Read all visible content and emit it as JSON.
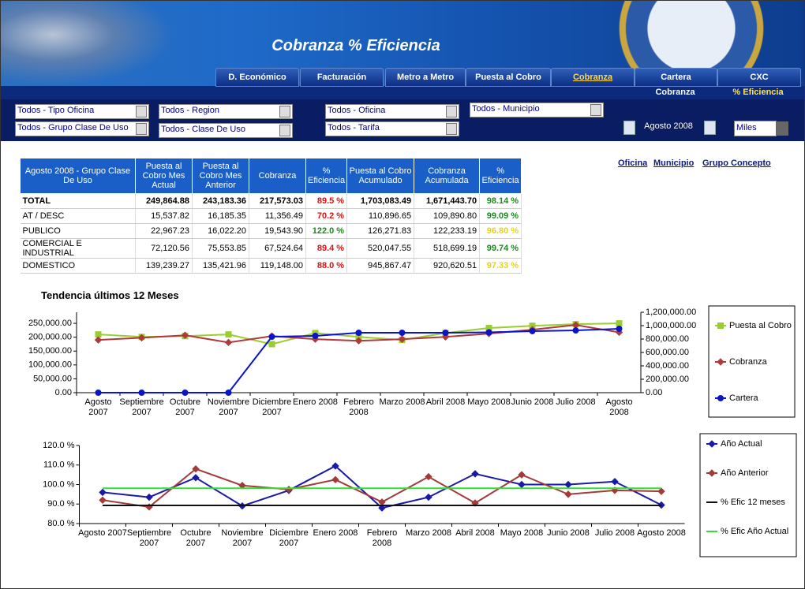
{
  "header": {
    "title": "Cobranza % Eficiencia"
  },
  "nav": {
    "tabs": [
      "D. Económico",
      "Facturación",
      "Metro a Metro",
      "Puesta al Cobro",
      "Cobranza",
      "Cartera",
      "CXC"
    ],
    "active": 4,
    "subtabs": [
      "Cobranza",
      "% Eficiencia"
    ]
  },
  "filters": [
    "Todos - Tipo Oficina",
    "Todos - Grupo Clase De Uso",
    "Todos - Region",
    "Todos - Clase De Uso",
    "Todos - Oficina",
    "Todos - Tarifa",
    "Todos - Municipio"
  ],
  "period": "Agosto 2008",
  "units": "Miles",
  "links": [
    "Oficina",
    "Municipio",
    "Grupo Concepto"
  ],
  "table": {
    "header": [
      "Agosto 2008 - Grupo Clase De Uso",
      "Puesta al Cobro Mes Actual",
      "Puesta al Cobro Mes Anterior",
      "Cobranza",
      "% Eficiencia",
      "Puesta al Cobro Acumulado",
      "Cobranza Acumulada",
      "% Eficiencia"
    ],
    "rows": [
      [
        "TOTAL",
        "249,864.88",
        "243,183.36",
        "217,573.03",
        "89.5 %",
        "1,703,083.49",
        "1,671,443.70",
        "98.14 %"
      ],
      [
        "AT / DESC",
        "15,537.82",
        "16,185.35",
        "11,356.49",
        "70.2 %",
        "110,896.65",
        "109,890.80",
        "99.09 %"
      ],
      [
        "PUBLICO",
        "22,967.23",
        "16,022.20",
        "19,543.90",
        "122.0 %",
        "126,271.83",
        "122,233.19",
        "96.80 %"
      ],
      [
        "COMERCIAL E INDUSTRIAL",
        "72,120.56",
        "75,553.85",
        "67,524.64",
        "89.4 %",
        "520,047.55",
        "518,699.19",
        "99.74 %"
      ],
      [
        "DOMESTICO",
        "139,239.27",
        "135,421.96",
        "119,148.00",
        "88.0 %",
        "945,867.47",
        "920,620.51",
        "97.33 %"
      ]
    ],
    "percent_colors": [
      [
        "#e01010",
        "#1a8a1a"
      ],
      [
        "#e01010",
        "#1a8a1a"
      ],
      [
        "#1a8a1a",
        "#e6d21a"
      ],
      [
        "#e01010",
        "#1a8a1a"
      ],
      [
        "#e01010",
        "#e6d21a"
      ]
    ]
  },
  "chart_data": [
    {
      "type": "line",
      "title": "Tendencia últimos 12 Meses",
      "categories": [
        "Agosto 2007",
        "Septiembre 2007",
        "Octubre 2007",
        "Noviembre 2007",
        "Diciembre 2007",
        "Enero 2008",
        "Febrero 2008",
        "Marzo 2008",
        "Abril 2008",
        "Mayo 2008",
        "Junio 2008",
        "Julio 2008",
        "Agosto 2008"
      ],
      "ylim": [
        0,
        290000
      ],
      "yticks": [
        {
          "value": 0,
          "label": "0.00"
        },
        {
          "value": 50000,
          "label": "50,000.00"
        },
        {
          "value": 100000,
          "label": "100,000.00"
        },
        {
          "value": 150000,
          "label": "150,000.00"
        },
        {
          "value": 200000,
          "label": "200,000.00"
        },
        {
          "value": 250000,
          "label": "250,000.00"
        }
      ],
      "y2lim": [
        0,
        1200000
      ],
      "y2ticks": [
        {
          "value": 0,
          "label": "0.00"
        },
        {
          "value": 200000,
          "label": "200,000.00"
        },
        {
          "value": 400000,
          "label": "400,000.00"
        },
        {
          "value": 600000,
          "label": "600,000.00"
        },
        {
          "value": 800000,
          "label": "800,000.00"
        },
        {
          "value": 1000000,
          "label": "1,000,000.00"
        },
        {
          "value": 1200000,
          "label": "1,200,000.00"
        }
      ],
      "grid": false,
      "series": [
        {
          "name": "Puesta al Cobro",
          "color": "#9acd32",
          "marker": "square",
          "values": [
            210000,
            201000,
            204000,
            210000,
            175000,
            215000,
            201000,
            190000,
            215000,
            233000,
            241000,
            247000,
            249864.88
          ]
        },
        {
          "name": "Cobranza",
          "color": "#b03a3a",
          "marker": "diamond",
          "values": [
            190000,
            198000,
            207000,
            181000,
            204000,
            193000,
            187000,
            193000,
            201000,
            213000,
            227000,
            244000,
            217573.03
          ]
        },
        {
          "name": "Cartera",
          "color": "#0a14c8",
          "marker": "circle",
          "axis": "y2",
          "values": [
            0,
            0,
            0,
            0,
            835000,
            847000,
            894000,
            894000,
            894000,
            900000,
            918000,
            929000,
            953000
          ]
        }
      ]
    },
    {
      "type": "line",
      "categories": [
        "Agosto 2007",
        "Septiembre 2007",
        "Octubre 2007",
        "Noviembre 2007",
        "Diciembre 2007",
        "Enero 2008",
        "Febrero 2008",
        "Marzo 2008",
        "Abril 2008",
        "Mayo 2008",
        "Junio 2008",
        "Julio 2008",
        "Agosto 2008"
      ],
      "ylim": [
        80,
        120
      ],
      "yticks": [
        {
          "value": 80,
          "label": "80.0 %"
        },
        {
          "value": 90,
          "label": "90.0 %"
        },
        {
          "value": 100,
          "label": "100.0 %"
        },
        {
          "value": 110,
          "label": "110.0 %"
        },
        {
          "value": 120,
          "label": "120.0 %"
        }
      ],
      "grid": false,
      "series": [
        {
          "name": "Año Actual",
          "color": "#1a1aa8",
          "marker": "diamond",
          "values": [
            96,
            93.5,
            103.5,
            89,
            97,
            109.5,
            88,
            93.5,
            105.5,
            100,
            100,
            101.5,
            89.5
          ]
        },
        {
          "name": "Año Anterior",
          "color": "#a33a3a",
          "marker": "diamond",
          "values": [
            92,
            88.5,
            108,
            99.5,
            97.5,
            102.5,
            91,
            104,
            90.5,
            105,
            95,
            97,
            96.5
          ]
        },
        {
          "name": "% Efic 12 meses",
          "color": "#111111",
          "marker": "none",
          "values": [
            89.3,
            89.3,
            89.3,
            89.3,
            89.3,
            89.3,
            89.3,
            89.3,
            89.3,
            89.3,
            89.3,
            89.3,
            89.3
          ]
        },
        {
          "name": "% Efic Año Actual",
          "color": "#33dd33",
          "marker": "none",
          "values": [
            98.1,
            98.1,
            98.1,
            98.1,
            98.1,
            98.1,
            98.1,
            98.1,
            98.1,
            98.1,
            98.1,
            98.1,
            98.1
          ]
        }
      ]
    }
  ]
}
